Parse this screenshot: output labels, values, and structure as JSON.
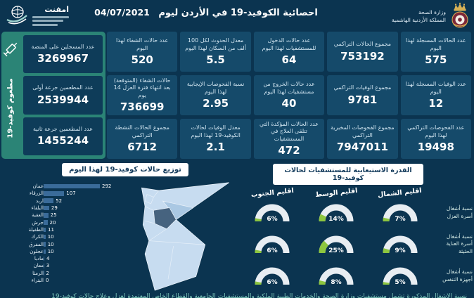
{
  "header": {
    "logo_text": "امفنت",
    "title": "احصائية الكوفيد-19 في الأردن ليوم",
    "date": "04/07/2021",
    "ministry_line1": "وزارة الصحة",
    "ministry_line2": "المملكة الأردنية الهاشمية"
  },
  "stats_columns": [
    [
      {
        "label": "عدد الحالات المسجلة لهذا اليوم",
        "value": "575"
      },
      {
        "label": "عدد الوفيات المسجلة لهذا اليوم",
        "value": "12"
      },
      {
        "label": "عدد الفحوصات التراكمي لهذا اليوم",
        "value": "19498"
      }
    ],
    [
      {
        "label": "مجموع الحالات التراكمي",
        "value": "753192"
      },
      {
        "label": "مجموع الوفيات التراكمي",
        "value": "9781"
      },
      {
        "label": "مجموع الفحوصات المخبرية التراكمي",
        "value": "7947011"
      }
    ],
    [
      {
        "label": "عدد حالات الدخول للمستشفيات لهذا اليوم",
        "value": "64"
      },
      {
        "label": "عدد حالات الخروج من مستشفيات لهذا اليوم",
        "value": "40"
      },
      {
        "label": "عدد الحالات المؤكدة التي تتلقى العلاج في المستشفيات",
        "value": "472"
      }
    ],
    [
      {
        "label": "معدل الحدوث لكل 100 ألف من السكان لهذا اليوم",
        "value": "5.5"
      },
      {
        "label": "نسبة الفحوصات الإيجابية لهذا اليوم",
        "value": "2.95"
      },
      {
        "label": "معدل الوفيات لحالات الكوفيد-19 لهذا اليوم",
        "value": "2.1"
      }
    ],
    [
      {
        "label": "عدد حالات الشفاء لهذا اليوم",
        "value": "520"
      },
      {
        "label": "حالات الشفاء (المتوقعة) بعد انتهاء فترة العزل 14 يوم",
        "value": "736699"
      },
      {
        "label": "مجموع الحالات النشطة التراكمي",
        "value": "6712"
      }
    ]
  ],
  "vaccination": {
    "strip_label": "مطعوم كوفيد-19",
    "cards": [
      {
        "label": "عدد المسجلين على المنصة",
        "value": "3269967"
      },
      {
        "label": "عدد المطعمين جرعة أولى",
        "value": "2539944"
      },
      {
        "label": "عدد المطعمين جرعة ثانية",
        "value": "1455244"
      }
    ]
  },
  "chart_data": [
    {
      "type": "bar",
      "orientation": "horizontal",
      "title": "توزيع حالات كوفيد-19 لهذا اليوم",
      "categories": [
        "عمان",
        "الزرقاء",
        "اربد",
        "البلقاء",
        "العقبة",
        "جرش",
        "الطفيلة",
        "الكرك",
        "المفرق",
        "عجلون",
        "مادبا",
        "معان",
        "الرمثا",
        "البتراء"
      ],
      "values": [
        292,
        107,
        52,
        29,
        25,
        20,
        11,
        10,
        10,
        10,
        4,
        3,
        2,
        0
      ],
      "xlim": [
        0,
        292
      ],
      "grid": false,
      "value_labels": true
    },
    {
      "type": "table",
      "title": "القدرة الاستيعابية للمستشفيات لحالات كوفيد-19",
      "columns": [
        "اقليم الشمال",
        "اقليم الوسط",
        "اقليم الجنوب"
      ],
      "rows": [
        {
          "label": "نسبة أشغال أسرة العزل",
          "values": [
            7,
            14,
            6
          ]
        },
        {
          "label": "نسبة أشغال أسرة العناية الحثيثة",
          "values": [
            9,
            25,
            6
          ]
        },
        {
          "label": "نسبة أشغال أجهزة التنفس",
          "values": [
            5,
            8,
            6
          ]
        }
      ],
      "unit": "%",
      "gauge_style": "semicircle"
    }
  ],
  "footnote_clipped": "نسبة الأشغال المذكورة تشمل مستشفيات وزارة الصحة والخدمات الطبية الملكية والمستشفيات الجامعية والقطاع الخاص المعتمدة لعزل وعلاج حالات كوفيد-19",
  "colors": {
    "background": "#0b3450",
    "card": "#154a6a",
    "teal_panel": "#2b8476",
    "accent_green": "#8dc63f",
    "bar_blue": "#3a6b99",
    "gauge_track": "#e8edf2",
    "map_light": "#c7dcf0",
    "map_mid": "#aac8e3",
    "map_dark": "#46637f",
    "white_box_text": "#11395a"
  }
}
